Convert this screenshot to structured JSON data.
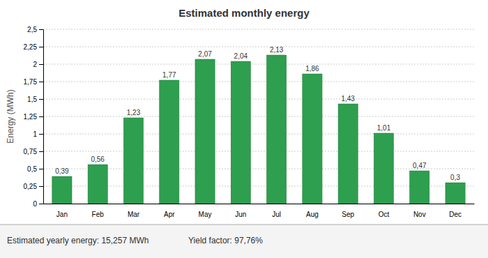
{
  "chart_data": {
    "type": "bar",
    "title": "Estimated monthly energy",
    "y_label": "Energy (MWh)",
    "categories": [
      "Jan",
      "Feb",
      "Mar",
      "Apr",
      "May",
      "Jun",
      "Jul",
      "Aug",
      "Sep",
      "Oct",
      "Nov",
      "Dec"
    ],
    "values": [
      0.39,
      0.56,
      1.23,
      1.77,
      2.07,
      2.04,
      2.13,
      1.86,
      1.43,
      1.01,
      0.47,
      0.3
    ],
    "value_labels": [
      "0,39",
      "0,56",
      "1,23",
      "1,77",
      "2,07",
      "2,04",
      "2,13",
      "1,86",
      "1,43",
      "1,01",
      "0,47",
      "0,3"
    ],
    "data_labels": true,
    "color": "#2e9e4f",
    "ylim": [
      0,
      2.5
    ],
    "yticks": [
      0,
      {
        "value": 0.25,
        "label": "0,25"
      },
      {
        "value": 0.5,
        "label": "0,5"
      },
      {
        "value": 0.75,
        "label": "0,75"
      },
      1,
      {
        "value": 1.25,
        "label": "1,25"
      },
      {
        "value": 1.5,
        "label": "1,5"
      },
      {
        "value": 1.75,
        "label": "1,75"
      },
      2,
      {
        "value": 2.25,
        "label": "2,25"
      },
      {
        "value": 2.5,
        "label": "2,5"
      }
    ],
    "grid": true,
    "annotations": [
      "Estimated yearly energy: 15,257 MWh",
      "Yield factor: 97,76%"
    ]
  }
}
